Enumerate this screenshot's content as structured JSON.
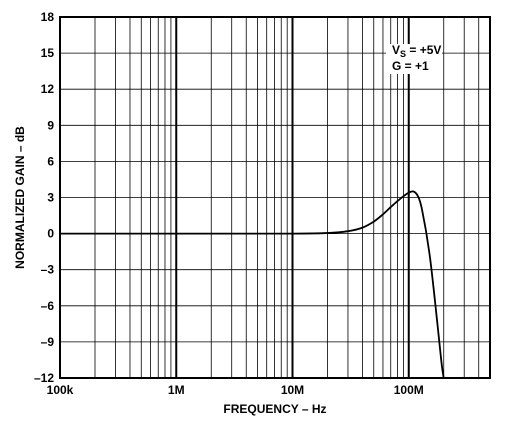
{
  "chart_data": {
    "type": "line",
    "x_scale": "log",
    "xlabel": "FREQUENCY – Hz",
    "ylabel": "NORMALIZED GAIN – dB",
    "xlim": [
      100000,
      500000000
    ],
    "ylim": [
      -12,
      18
    ],
    "x_ticks": [
      {
        "value": 100000,
        "label": "100k"
      },
      {
        "value": 1000000,
        "label": "1M"
      },
      {
        "value": 10000000,
        "label": "10M"
      },
      {
        "value": 100000000,
        "label": "100M"
      }
    ],
    "y_ticks": [
      {
        "value": 18,
        "label": "18"
      },
      {
        "value": 15,
        "label": "15"
      },
      {
        "value": 12,
        "label": "12"
      },
      {
        "value": 9,
        "label": "9"
      },
      {
        "value": 6,
        "label": "6"
      },
      {
        "value": 3,
        "label": "3"
      },
      {
        "value": 0,
        "label": "0"
      },
      {
        "value": -3,
        "label": "–3"
      },
      {
        "value": -6,
        "label": "–6"
      },
      {
        "value": -9,
        "label": "–9"
      },
      {
        "value": -12,
        "label": "–12"
      }
    ],
    "grid": true,
    "annotations": {
      "vs_main": "V",
      "vs_sub": "S",
      "vs_value": " = +5V",
      "gain": "G = +1"
    },
    "series": [
      {
        "color": "#000000",
        "x": [
          100000,
          1000000,
          10000000,
          20000000,
          30000000,
          40000000,
          50000000,
          60000000,
          70000000,
          80000000,
          90000000,
          100000000,
          110000000,
          120000000,
          130000000,
          150000000,
          170000000,
          190000000,
          200000000
        ],
        "y": [
          0,
          0,
          0,
          0.05,
          0.2,
          0.5,
          1.0,
          1.6,
          2.2,
          2.7,
          3.1,
          3.4,
          3.5,
          3.1,
          2.0,
          -1.5,
          -6.0,
          -10.5,
          -12
        ]
      }
    ]
  }
}
